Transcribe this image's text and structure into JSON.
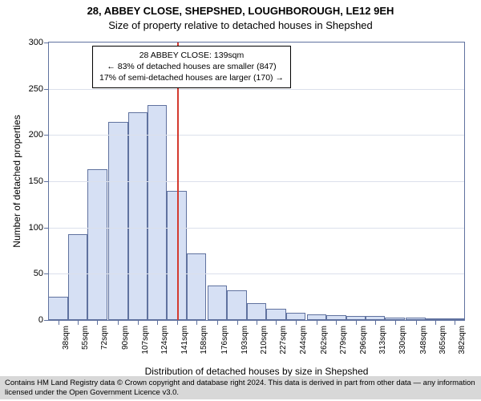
{
  "title_line1": "28, ABBEY CLOSE, SHEPSHED, LOUGHBOROUGH, LE12 9EH",
  "title_line2": "Size of property relative to detached houses in Shepshed",
  "ylabel": "Number of detached properties",
  "xlabel": "Distribution of detached houses by size in Shepshed",
  "footer": "Contains HM Land Registry data © Crown copyright and database right 2024. This data is derived in part from other data — any information licensed under the Open Government Licence v3.0.",
  "chart": {
    "type": "histogram",
    "xlim": [
      30,
      390
    ],
    "ylim": [
      0,
      300
    ],
    "ytick_step": 50,
    "bin_width": 17,
    "background_color": "#ffffff",
    "grid_color": "#dbe0eb",
    "axis_color": "#60729f",
    "bar_fill": "#d6e0f4",
    "bar_border": "#60729f",
    "ref_line_color": "#d43a2f",
    "ref_line_x": 141,
    "label_fontsize": 12,
    "tick_fontsize": 11,
    "bins": [
      {
        "x": 38,
        "label": "38sqm",
        "value": 25
      },
      {
        "x": 55,
        "label": "55sqm",
        "value": 93
      },
      {
        "x": 72,
        "label": "72sqm",
        "value": 163
      },
      {
        "x": 90,
        "label": "90sqm",
        "value": 214
      },
      {
        "x": 107,
        "label": "107sqm",
        "value": 225
      },
      {
        "x": 124,
        "label": "124sqm",
        "value": 232
      },
      {
        "x": 141,
        "label": "141sqm",
        "value": 140
      },
      {
        "x": 158,
        "label": "158sqm",
        "value": 72
      },
      {
        "x": 176,
        "label": "176sqm",
        "value": 37
      },
      {
        "x": 193,
        "label": "193sqm",
        "value": 32
      },
      {
        "x": 210,
        "label": "210sqm",
        "value": 18
      },
      {
        "x": 227,
        "label": "227sqm",
        "value": 12
      },
      {
        "x": 244,
        "label": "244sqm",
        "value": 8
      },
      {
        "x": 262,
        "label": "262sqm",
        "value": 6
      },
      {
        "x": 279,
        "label": "279sqm",
        "value": 5
      },
      {
        "x": 296,
        "label": "296sqm",
        "value": 4
      },
      {
        "x": 313,
        "label": "313sqm",
        "value": 4
      },
      {
        "x": 330,
        "label": "330sqm",
        "value": 3
      },
      {
        "x": 348,
        "label": "348sqm",
        "value": 3
      },
      {
        "x": 365,
        "label": "365sqm",
        "value": 2
      },
      {
        "x": 382,
        "label": "382sqm",
        "value": 2
      }
    ],
    "annotation": {
      "line1": "28 ABBEY CLOSE: 139sqm",
      "line2": "← 83% of detached houses are smaller (847)",
      "line3": "17% of semi-detached houses are larger (170) →",
      "border": "#000000",
      "bg": "#ffffff",
      "fontsize": 10.5
    }
  }
}
